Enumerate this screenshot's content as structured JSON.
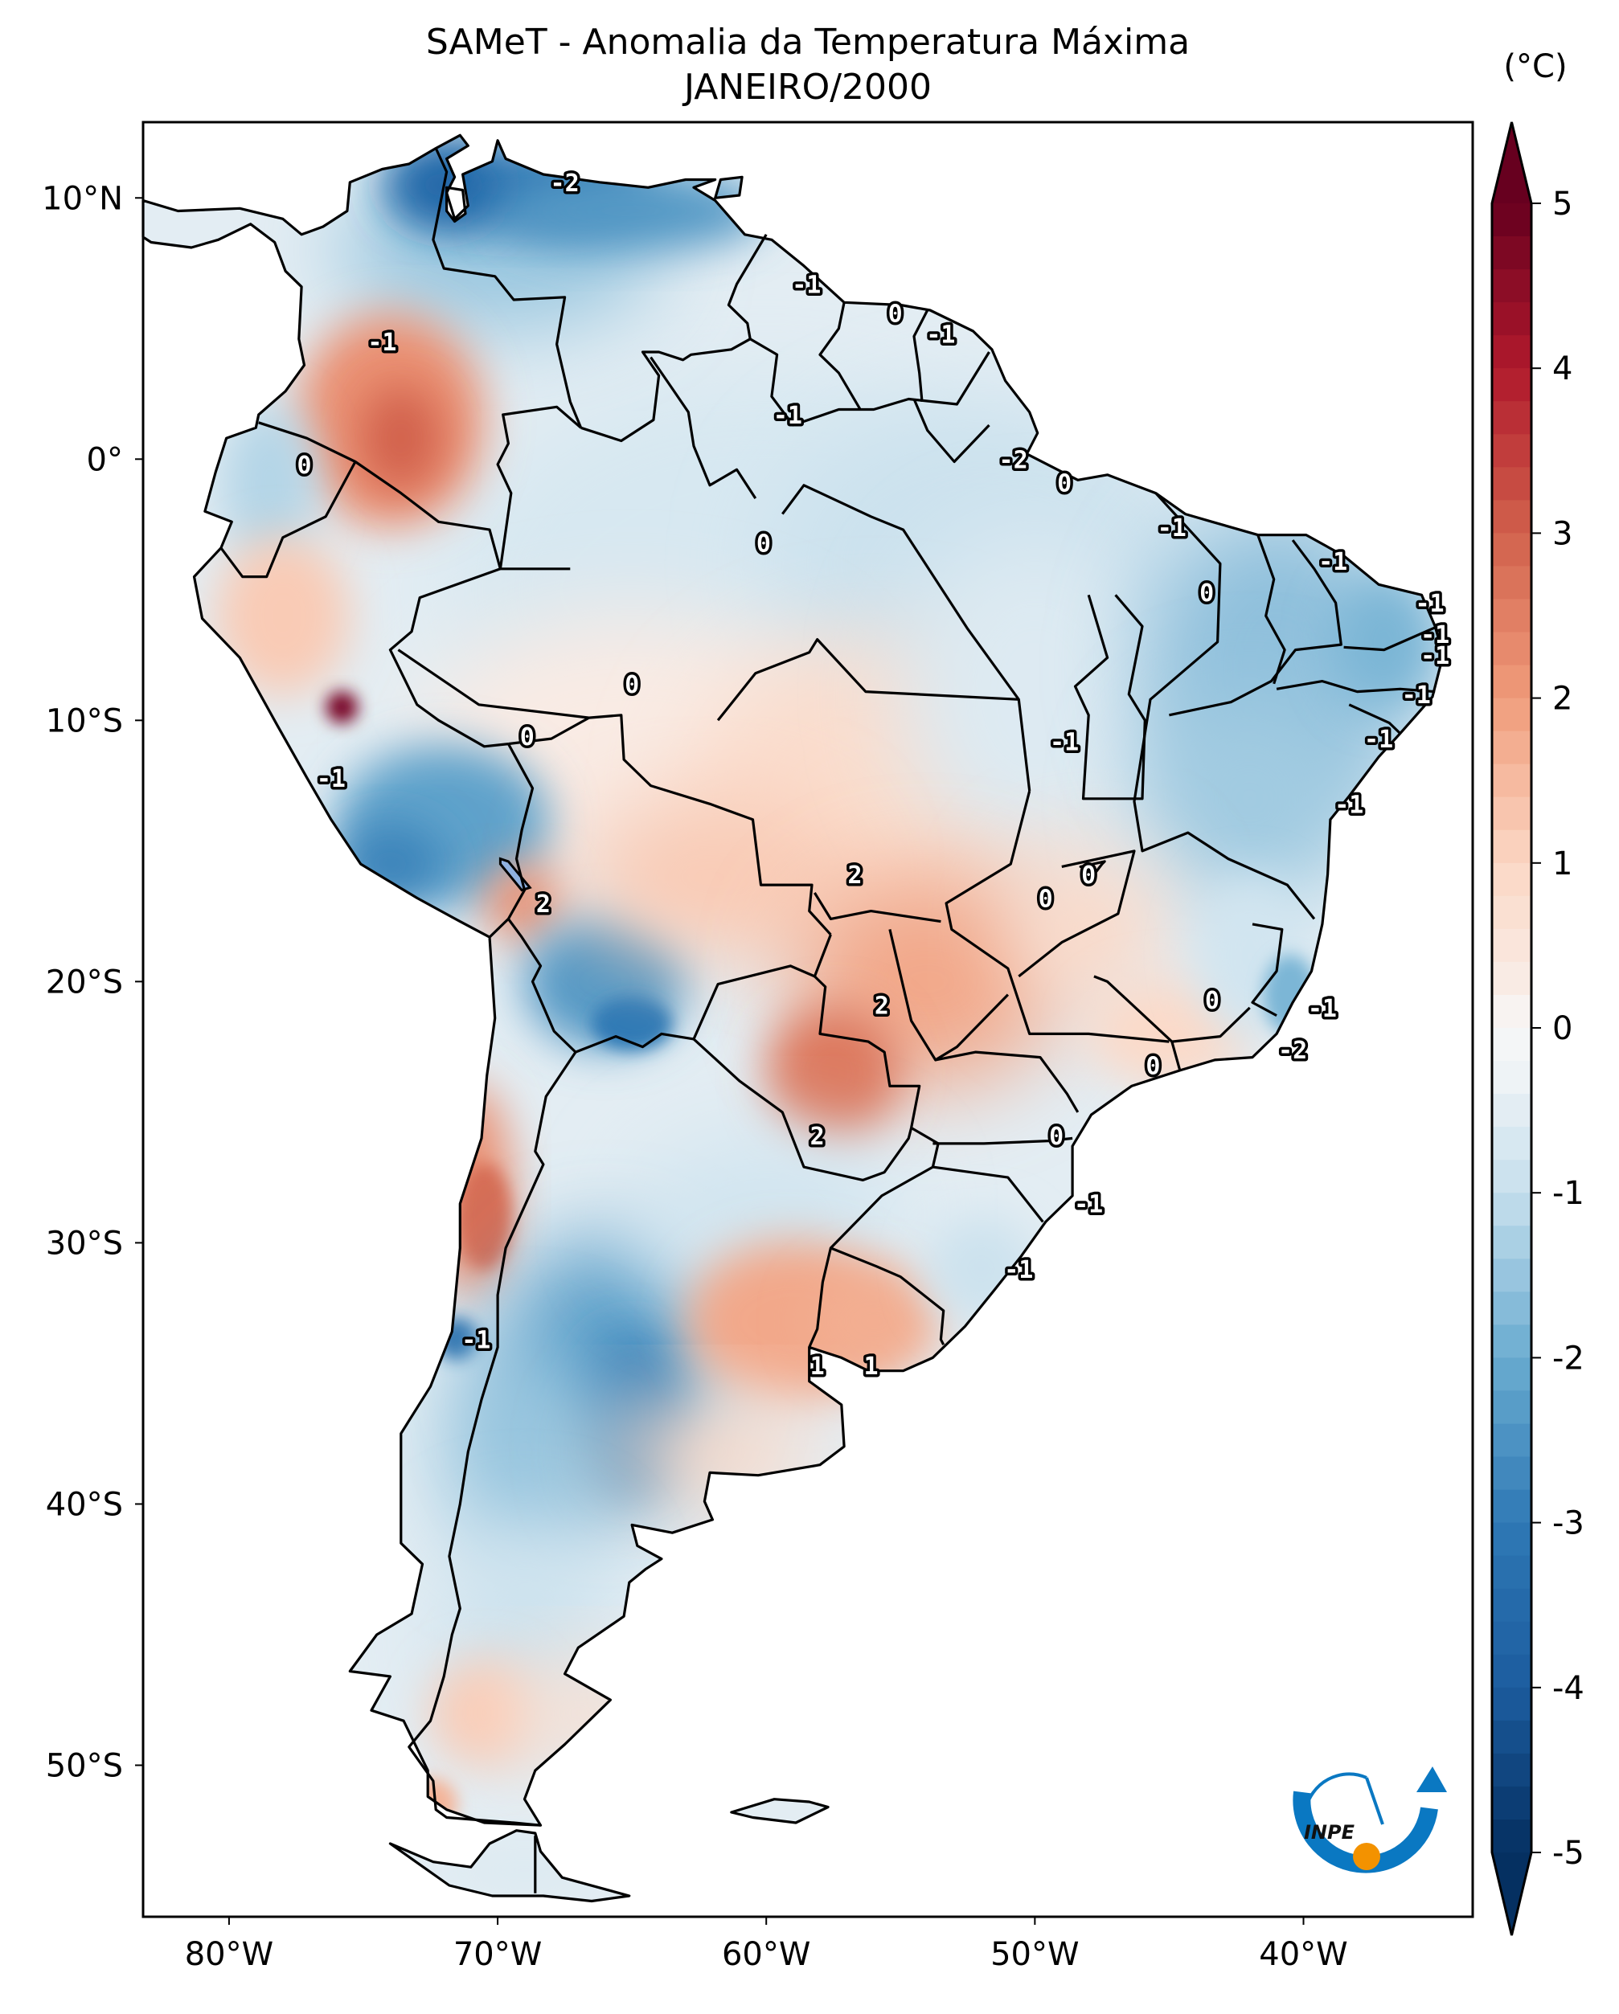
{
  "title": {
    "line1": "SAMeT - Anomalia da Temperatura Máxima",
    "line2": "JANEIRO/2000"
  },
  "colorbar": {
    "unit_label": "(°C)",
    "min": -5,
    "max": 5,
    "extend": "both",
    "colormap": "RdBu_r",
    "ticks": [
      "5",
      "4",
      "3",
      "2",
      "1",
      "0",
      "-1",
      "-2",
      "-3",
      "-4",
      "-5"
    ],
    "tick_values": [
      5,
      4,
      3,
      2,
      1,
      0,
      -1,
      -2,
      -3,
      -4,
      -5
    ],
    "colors": {
      "max": "#67001f",
      "high": "#b2182b",
      "warm": "#d6604d",
      "light_warm": "#f4a582",
      "pale_warm": "#fddbc7",
      "neutral": "#f7f7f7",
      "pale_cool": "#d1e5f0",
      "light_cool": "#92c5de",
      "cool": "#4393c3",
      "deep": "#2166ac",
      "min": "#053061"
    }
  },
  "logo": {
    "text": "INPE",
    "colors": {
      "ring": "#0a78c2",
      "dot": "#f39200",
      "text": "#111111"
    }
  },
  "chart_data": {
    "type": "heatmap",
    "title": "SAMeT - Anomalia da Temperatura Máxima",
    "subtitle": "JANEIRO/2000",
    "variable": "Anomalia da Temperatura Máxima",
    "units": "°C",
    "region": "South America",
    "colorbar_range": [
      -5,
      5
    ],
    "xlim_lon": [
      -83.2,
      -33.7
    ],
    "ylim_lat": [
      -55.8,
      12.9
    ],
    "x_ticks": [
      {
        "lon": -80,
        "label": "80°W"
      },
      {
        "lon": -70,
        "label": "70°W"
      },
      {
        "lon": -60,
        "label": "60°W"
      },
      {
        "lon": -50,
        "label": "50°W"
      },
      {
        "lon": -40,
        "label": "40°W"
      }
    ],
    "y_ticks": [
      {
        "lat": 10,
        "label": "10°N"
      },
      {
        "lat": 0,
        "label": "0°"
      },
      {
        "lat": -10,
        "label": "10°S"
      },
      {
        "lat": -20,
        "label": "20°S"
      },
      {
        "lat": -30,
        "label": "30°S"
      },
      {
        "lat": -40,
        "label": "40°S"
      },
      {
        "lat": -50,
        "label": "50°S"
      }
    ],
    "contour_labels": [
      {
        "text": "-2",
        "lon": -67.5,
        "lat": 10.6
      },
      {
        "text": "-1",
        "lon": -74.3,
        "lat": 4.5
      },
      {
        "text": "0",
        "lon": -77.2,
        "lat": -0.2
      },
      {
        "text": "-1",
        "lon": -59.2,
        "lat": 1.7
      },
      {
        "text": "-1",
        "lon": -58.5,
        "lat": 6.7
      },
      {
        "text": "0",
        "lon": -55.2,
        "lat": 5.6
      },
      {
        "text": "-1",
        "lon": -53.5,
        "lat": 4.8
      },
      {
        "text": "-2",
        "lon": -50.8,
        "lat": 0.0
      },
      {
        "text": "0",
        "lon": -48.9,
        "lat": -0.9
      },
      {
        "text": "0",
        "lon": -60.1,
        "lat": -3.2
      },
      {
        "text": "-1",
        "lon": -44.9,
        "lat": -2.6
      },
      {
        "text": "-1",
        "lon": -38.9,
        "lat": -3.9
      },
      {
        "text": "0",
        "lon": -43.6,
        "lat": -5.1
      },
      {
        "text": "-1",
        "lon": -35.3,
        "lat": -5.5
      },
      {
        "text": "-1",
        "lon": -35.1,
        "lat": -6.7
      },
      {
        "text": "-1",
        "lon": -35.1,
        "lat": -7.5
      },
      {
        "text": "-1",
        "lon": -35.8,
        "lat": -9.0
      },
      {
        "text": "-1",
        "lon": -37.2,
        "lat": -10.7
      },
      {
        "text": "-1",
        "lon": -38.3,
        "lat": -13.2
      },
      {
        "text": "0",
        "lon": -65.0,
        "lat": -8.6
      },
      {
        "text": "0",
        "lon": -68.9,
        "lat": -10.6
      },
      {
        "text": "-1",
        "lon": -48.9,
        "lat": -10.8
      },
      {
        "text": "-1",
        "lon": -76.2,
        "lat": -12.2
      },
      {
        "text": "2",
        "lon": -68.3,
        "lat": -17.0
      },
      {
        "text": "2",
        "lon": -56.7,
        "lat": -15.9
      },
      {
        "text": "0",
        "lon": -48.0,
        "lat": -15.9
      },
      {
        "text": "0",
        "lon": -49.6,
        "lat": -16.8
      },
      {
        "text": "2",
        "lon": -55.7,
        "lat": -20.9
      },
      {
        "text": "0",
        "lon": -43.4,
        "lat": -20.7
      },
      {
        "text": "-1",
        "lon": -39.3,
        "lat": -21.0
      },
      {
        "text": "-2",
        "lon": -40.4,
        "lat": -22.6
      },
      {
        "text": "0",
        "lon": -45.6,
        "lat": -23.2
      },
      {
        "text": "2",
        "lon": -58.1,
        "lat": -25.9
      },
      {
        "text": "0",
        "lon": -49.2,
        "lat": -25.9
      },
      {
        "text": "-1",
        "lon": -48.0,
        "lat": -28.5
      },
      {
        "text": "-1",
        "lon": -50.6,
        "lat": -31.0
      },
      {
        "text": "-1",
        "lon": -70.8,
        "lat": -33.7
      },
      {
        "text": "1",
        "lon": -58.1,
        "lat": -34.7
      },
      {
        "text": "1",
        "lon": -56.1,
        "lat": -34.7
      }
    ],
    "anomaly_regions": [
      {
        "name": "northern Venezuela/Colombia coast",
        "value": -3.5
      },
      {
        "name": "southern Colombia",
        "value": 2.5
      },
      {
        "name": "central Peru hotspot",
        "value": 4.5
      },
      {
        "name": "southern Peru",
        "value": -2.5
      },
      {
        "name": "western Bolivia",
        "value": -2.5
      },
      {
        "name": "Mato Grosso do Sul / Paraguay",
        "value": 2.8
      },
      {
        "name": "central Chile",
        "value": 2.5
      },
      {
        "name": "central Argentina (Mendoza/Neuquén)",
        "value": -2.8
      },
      {
        "name": "Uruguay / Buenos Aires",
        "value": 1.8
      },
      {
        "name": "Northeast Brazil",
        "value": -1.5
      },
      {
        "name": "Patagonia south",
        "value": 1.0
      }
    ]
  }
}
